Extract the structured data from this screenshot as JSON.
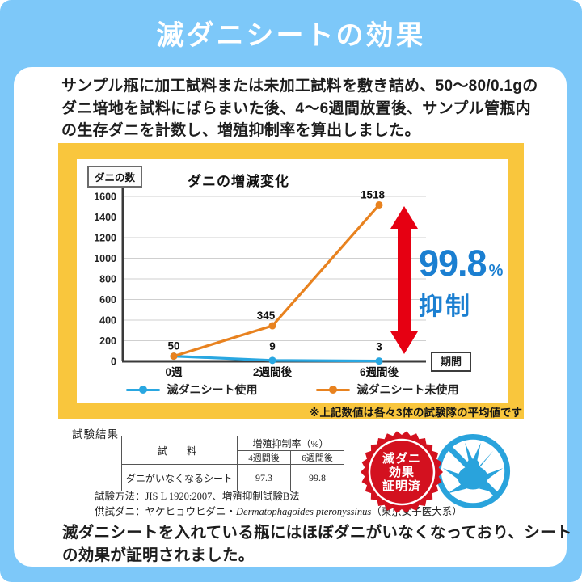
{
  "page": {
    "title": "滅ダニシートの効果",
    "description_lines": [
      "サンプル瓶に加工試料または未加工試料を敷き詰め、50〜80/0.1gの",
      "ダニ培地を試料にばらまいた後、4〜6週間放置後、サンプル管瓶内",
      "の生存ダニを計数し、増殖抑制率を算出しました。"
    ],
    "conclusion_lines": [
      "滅ダニシートを入れている瓶にはほぼダニがいなくなっており、シート",
      "の効果が証明されました。"
    ],
    "colors": {
      "background_blue": "#7dc8f9",
      "frame_yellow": "#f9c63d",
      "card_white": "#ffffff"
    }
  },
  "chart_data": {
    "type": "line",
    "title": "ダニの増減変化",
    "y_axis_box_label": "ダニの数",
    "x_axis_box_label": "期間",
    "categories": [
      "0週",
      "2週間後",
      "6週間後"
    ],
    "series": [
      {
        "name": "滅ダニシート使用",
        "color": "#29a7e1",
        "values": [
          50,
          9,
          3
        ],
        "point_labels": [
          "",
          "9",
          "3"
        ]
      },
      {
        "name": "滅ダニシート未使用",
        "color": "#e8821f",
        "values": [
          50,
          345,
          1518
        ],
        "point_labels": [
          "50",
          "345",
          "1518"
        ]
      }
    ],
    "ylim": [
      0,
      1600
    ],
    "ytick_step": 200,
    "grid": true,
    "legend_position": "bottom",
    "annotation": {
      "text_value": "99.8",
      "text_unit": "%",
      "text_label": "抑制",
      "color": "#1b7fd1",
      "arrow_color": "#e60012"
    }
  },
  "chart_note": "※上記数値は各々3体の試験隊の平均値です",
  "results": {
    "section_label": "試験結果",
    "table": {
      "col1_header": "試　料",
      "group_header": "増殖抑制率（%）",
      "sub_headers": [
        "4週間後",
        "6週間後"
      ],
      "rows": [
        {
          "name": "ダニがいなくなるシート",
          "values": [
            "97.3",
            "99.8"
          ]
        }
      ]
    },
    "method_note": "試験方法：JIS L 1920:2007、増殖抑制試験B法",
    "mite_note_prefix": "供試ダニ：ヤケヒョウヒダニ・",
    "mite_note_latin": "Dermatophagoides pteronyssinus",
    "mite_note_suffix": "（東京女子医大系）"
  },
  "badge": {
    "lines": [
      "滅ダニ",
      "効果",
      "証明済"
    ],
    "seal_color": "#d3111f",
    "icon_color": "#29a3dc"
  }
}
